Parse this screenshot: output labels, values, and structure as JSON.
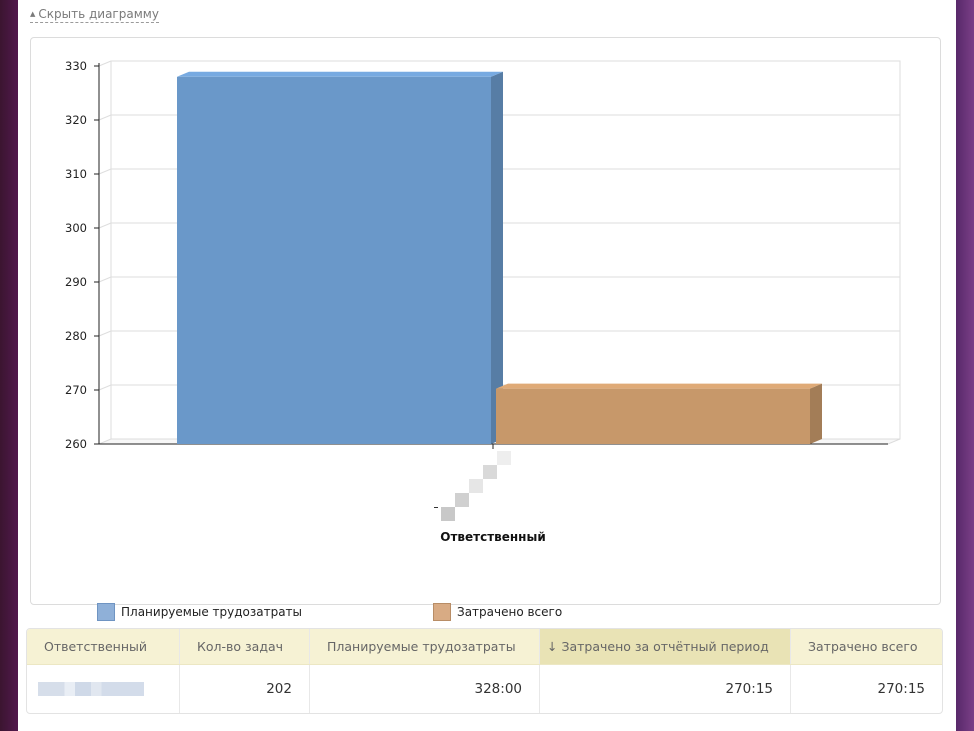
{
  "toggle": {
    "label": "Скрыть диаграмму"
  },
  "chart_data": {
    "type": "bar",
    "categories": [
      ""
    ],
    "series": [
      {
        "name": "Планируемые трудозатраты",
        "values": [
          328
        ],
        "color": "#6a98c9"
      },
      {
        "name": "Затрачено всего",
        "values": [
          270.25
        ],
        "color": "#c7986a"
      }
    ],
    "xlabel": "Ответственный",
    "ylabel": "",
    "ylim": [
      260,
      330
    ],
    "yticks": [
      330,
      320,
      310,
      300,
      290,
      280,
      270,
      260
    ],
    "grid": true,
    "legend": "bottom"
  },
  "table": {
    "columns": [
      "Ответственный",
      "Кол-во задач",
      "Планируемые трудозатраты",
      "↓ Затрачено за отчётный период",
      "Затрачено всего"
    ],
    "rows": [
      {
        "name": "",
        "tasks": "202",
        "planned": "328:00",
        "period": "270:15",
        "total": "270:15"
      }
    ]
  }
}
